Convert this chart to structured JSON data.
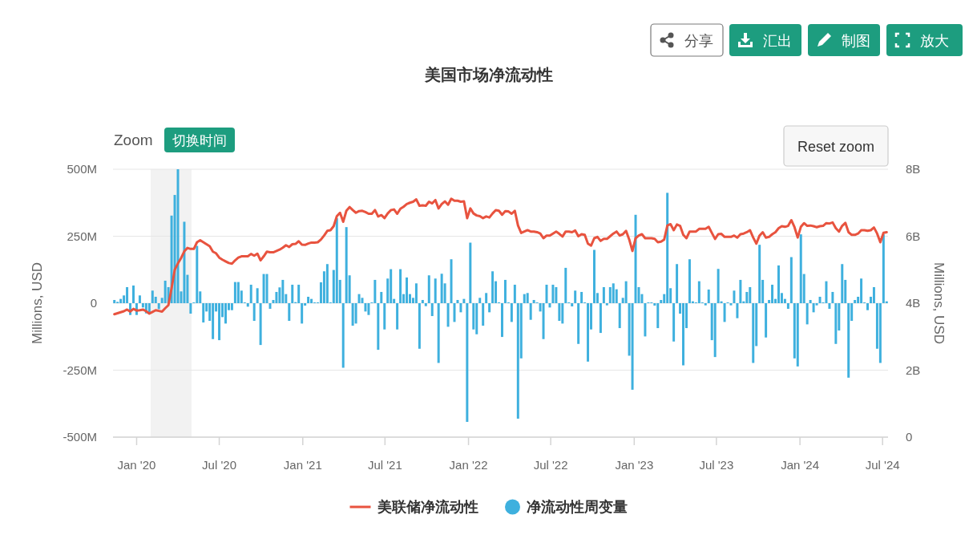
{
  "chart_data": {
    "type": "bar",
    "title": "美国市场净流动性",
    "ylabel": "Millions, USD",
    "y2label": "Millions, USD",
    "annotations": [
      "分享",
      "汇出",
      "制图",
      "放大",
      "Zoom",
      "切换时间",
      "Reset zoom"
    ],
    "x": [
      "2019-11-13",
      "2019-11-20",
      "2019-11-27",
      "2019-12-04",
      "2019-12-11",
      "2019-12-18",
      "2019-12-25",
      "2020-01-01",
      "2020-01-08",
      "2020-01-15",
      "2020-01-22",
      "2020-01-29",
      "2020-02-05",
      "2020-02-12",
      "2020-02-19",
      "2020-02-26",
      "2020-03-04",
      "2020-03-11",
      "2020-03-18",
      "2020-03-25",
      "2020-04-01",
      "2020-04-08",
      "2020-04-15",
      "2020-04-22",
      "2020-04-29",
      "2020-05-06",
      "2020-05-13",
      "2020-05-20",
      "2020-05-27",
      "2020-06-03",
      "2020-06-10",
      "2020-06-17",
      "2020-06-24",
      "2020-07-01",
      "2020-07-08",
      "2020-07-15",
      "2020-07-22",
      "2020-07-29",
      "2020-08-05",
      "2020-08-12",
      "2020-08-19",
      "2020-08-26",
      "2020-09-02",
      "2020-09-09",
      "2020-09-16",
      "2020-09-23",
      "2020-09-30",
      "2020-10-07",
      "2020-10-14",
      "2020-10-21",
      "2020-10-28",
      "2020-11-04",
      "2020-11-11",
      "2020-11-18",
      "2020-11-25",
      "2020-12-02",
      "2020-12-09",
      "2020-12-16",
      "2020-12-23",
      "2020-12-30",
      "2021-01-06",
      "2021-01-13",
      "2021-01-20",
      "2021-01-27",
      "2021-02-03",
      "2021-02-10",
      "2021-02-17",
      "2021-02-24",
      "2021-03-03",
      "2021-03-10",
      "2021-03-17",
      "2021-03-24",
      "2021-03-31",
      "2021-04-07",
      "2021-04-14",
      "2021-04-21",
      "2021-04-28",
      "2021-05-05",
      "2021-05-12",
      "2021-05-19",
      "2021-05-26",
      "2021-06-02",
      "2021-06-09",
      "2021-06-16",
      "2021-06-23",
      "2021-06-30",
      "2021-07-07",
      "2021-07-14",
      "2021-07-21",
      "2021-07-28",
      "2021-08-04",
      "2021-08-11",
      "2021-08-18",
      "2021-08-25",
      "2021-09-01",
      "2021-09-08",
      "2021-09-15",
      "2021-09-22",
      "2021-09-29",
      "2021-10-06",
      "2021-10-13",
      "2021-10-20",
      "2021-10-27",
      "2021-11-03",
      "2021-11-10",
      "2021-11-17",
      "2021-11-24",
      "2021-12-01",
      "2021-12-08",
      "2021-12-15",
      "2021-12-22",
      "2021-12-29",
      "2022-01-05",
      "2022-01-12",
      "2022-01-19",
      "2022-01-26",
      "2022-02-02",
      "2022-02-09",
      "2022-02-16",
      "2022-02-23",
      "2022-03-02",
      "2022-03-09",
      "2022-03-16",
      "2022-03-23",
      "2022-03-30",
      "2022-04-06",
      "2022-04-13",
      "2022-04-20",
      "2022-04-27",
      "2022-05-04",
      "2022-05-11",
      "2022-05-18",
      "2022-05-25",
      "2022-06-01",
      "2022-06-08",
      "2022-06-15",
      "2022-06-22",
      "2022-06-29",
      "2022-07-06",
      "2022-07-13",
      "2022-07-20",
      "2022-07-27",
      "2022-08-03",
      "2022-08-10",
      "2022-08-17",
      "2022-08-24",
      "2022-08-31",
      "2022-09-07",
      "2022-09-14",
      "2022-09-21",
      "2022-09-28",
      "2022-10-05",
      "2022-10-12",
      "2022-10-19",
      "2022-10-26",
      "2022-11-02",
      "2022-11-09",
      "2022-11-16",
      "2022-11-23",
      "2022-11-30",
      "2022-12-07",
      "2022-12-14",
      "2022-12-21",
      "2022-12-28",
      "2023-01-04",
      "2023-01-11",
      "2023-01-18",
      "2023-01-25",
      "2023-02-01",
      "2023-02-08",
      "2023-02-15",
      "2023-02-22",
      "2023-03-01",
      "2023-03-08",
      "2023-03-15",
      "2023-03-22",
      "2023-03-29",
      "2023-04-05",
      "2023-04-12",
      "2023-04-19",
      "2023-04-26",
      "2023-05-03",
      "2023-05-10",
      "2023-05-17",
      "2023-05-24",
      "2023-05-31",
      "2023-06-07",
      "2023-06-14",
      "2023-06-21",
      "2023-06-28",
      "2023-07-05",
      "2023-07-12",
      "2023-07-19",
      "2023-07-26",
      "2023-08-02",
      "2023-08-09",
      "2023-08-16",
      "2023-08-23",
      "2023-08-30",
      "2023-09-06",
      "2023-09-13",
      "2023-09-20",
      "2023-09-27",
      "2023-10-04",
      "2023-10-11",
      "2023-10-18",
      "2023-10-25",
      "2023-11-01",
      "2023-11-08",
      "2023-11-15",
      "2023-11-22",
      "2023-11-29",
      "2023-12-06",
      "2023-12-13",
      "2023-12-20",
      "2023-12-27",
      "2024-01-03",
      "2024-01-10",
      "2024-01-17",
      "2024-01-24",
      "2024-01-31",
      "2024-02-07",
      "2024-02-14",
      "2024-02-21",
      "2024-02-28",
      "2024-03-06",
      "2024-03-13",
      "2024-03-20",
      "2024-03-27",
      "2024-04-03",
      "2024-04-10",
      "2024-04-17",
      "2024-04-24",
      "2024-05-01",
      "2024-05-08",
      "2024-05-15",
      "2024-05-22",
      "2024-05-29",
      "2024-06-05",
      "2024-06-12",
      "2024-06-19",
      "2024-06-26",
      "2024-07-03",
      "2024-07-10"
    ],
    "series": [
      {
        "name": "美联储净流动性",
        "type": "line",
        "axis": "y2",
        "color": "#e8533f",
        "values": [
          3.67,
          3.7,
          3.73,
          3.76,
          3.81,
          3.75,
          3.83,
          3.78,
          3.79,
          3.81,
          3.76,
          3.69,
          3.74,
          3.79,
          3.77,
          3.75,
          3.85,
          3.94,
          4.45,
          5.0,
          5.19,
          5.35,
          5.55,
          5.65,
          5.62,
          5.62,
          5.82,
          5.88,
          5.82,
          5.76,
          5.7,
          5.54,
          5.49,
          5.36,
          5.3,
          5.25,
          5.2,
          5.18,
          5.28,
          5.36,
          5.4,
          5.4,
          5.4,
          5.47,
          5.42,
          5.48,
          5.28,
          5.4,
          5.54,
          5.52,
          5.52,
          5.56,
          5.6,
          5.66,
          5.73,
          5.68,
          5.76,
          5.77,
          5.85,
          5.75,
          5.74,
          5.78,
          5.81,
          5.81,
          5.82,
          5.9,
          6.02,
          6.16,
          6.18,
          6.3,
          6.6,
          6.7,
          6.43,
          6.76,
          6.87,
          6.78,
          6.7,
          6.75,
          6.76,
          6.72,
          6.67,
          6.67,
          6.78,
          6.59,
          6.63,
          6.54,
          6.68,
          6.78,
          6.8,
          6.67,
          6.82,
          6.88,
          6.96,
          7.0,
          7.03,
          7.1,
          6.91,
          6.92,
          6.91,
          7.03,
          6.98,
          7.08,
          6.83,
          6.96,
          7.04,
          6.94,
          7.12,
          7.06,
          7.06,
          7.03,
          7.04,
          6.54,
          6.83,
          6.68,
          6.62,
          6.6,
          6.54,
          6.59,
          6.56,
          6.68,
          6.78,
          6.76,
          6.64,
          6.75,
          6.74,
          6.67,
          6.76,
          6.32,
          6.1,
          6.14,
          6.18,
          6.14,
          6.14,
          6.12,
          6.08,
          5.94,
          6.02,
          6.02,
          6.08,
          6.14,
          6.07,
          5.99,
          6.14,
          6.14,
          6.12,
          6.17,
          6.0,
          6.06,
          6.04,
          5.78,
          5.72,
          5.94,
          5.98,
          5.86,
          5.92,
          5.92,
          6.0,
          6.08,
          6.14,
          6.02,
          6.06,
          6.16,
          5.9,
          5.56,
          5.94,
          6.02,
          6.06,
          5.94,
          5.94,
          5.94,
          5.92,
          5.82,
          5.84,
          5.9,
          6.32,
          6.36,
          6.18,
          6.35,
          6.31,
          6.04,
          5.94,
          6.14,
          6.14,
          6.14,
          6.22,
          6.22,
          6.22,
          6.28,
          6.1,
          5.92,
          6.06,
          6.07,
          5.98,
          5.98,
          5.98,
          6.02,
          5.96,
          6.06,
          6.08,
          6.12,
          6.18,
          5.96,
          5.78,
          6.02,
          6.12,
          5.96,
          5.98,
          6.06,
          6.12,
          6.24,
          6.3,
          6.28,
          6.31,
          6.48,
          6.27,
          5.96,
          6.28,
          6.39,
          6.31,
          6.32,
          6.3,
          6.27,
          6.3,
          6.31,
          6.39,
          6.38,
          6.41,
          6.24,
          6.14,
          6.31,
          6.4,
          6.12,
          6.04,
          6.04,
          6.08,
          6.18,
          6.18,
          6.16,
          6.18,
          6.26,
          6.08,
          5.82,
          6.1,
          6.12
        ]
      },
      {
        "name": "净流动性周变量",
        "color": "#3eb0de",
        "values": [
          12,
          5,
          16,
          29,
          60,
          -44,
          66,
          -44,
          29,
          -16,
          -38,
          -38,
          47,
          24,
          -22,
          20,
          84,
          60,
          327,
          404,
          500,
          44,
          304,
          106,
          -39,
          2,
          214,
          44,
          -72,
          -31,
          -66,
          -134,
          -31,
          -138,
          -52,
          -76,
          -26,
          -26,
          79,
          79,
          47,
          2,
          -13,
          69,
          -66,
          56,
          -156,
          109,
          109,
          -21,
          12,
          42,
          59,
          87,
          34,
          -66,
          69,
          4,
          69,
          -76,
          -9,
          24,
          16,
          2,
          1,
          78,
          119,
          146,
          1,
          124,
          317,
          87,
          -241,
          284,
          104,
          -84,
          -76,
          34,
          20,
          -31,
          -44,
          0,
          87,
          -174,
          42,
          -98,
          92,
          127,
          16,
          -98,
          127,
          34,
          96,
          34,
          20,
          74,
          -170,
          12,
          -11,
          104,
          -48,
          92,
          -223,
          110,
          74,
          -88,
          164,
          -70,
          12,
          -34,
          16,
          -443,
          226,
          -98,
          -116,
          20,
          -84,
          38,
          -34,
          119,
          82,
          2,
          -126,
          87,
          2,
          -70,
          69,
          -431,
          -206,
          34,
          38,
          -62,
          12,
          2,
          -31,
          -134,
          69,
          -16,
          69,
          60,
          -66,
          -76,
          132,
          0,
          -12,
          47,
          -152,
          42,
          1,
          -218,
          -98,
          199,
          38,
          -111,
          60,
          -8,
          60,
          74,
          52,
          -93,
          20,
          82,
          -196,
          -323,
          330,
          60,
          34,
          -124,
          0,
          2,
          -9,
          -93,
          12,
          34,
          412,
          56,
          -143,
          146,
          -39,
          -232,
          -93,
          164,
          7,
          0,
          82,
          2,
          -8,
          51,
          -138,
          -201,
          128,
          7,
          -70,
          0,
          -8,
          47,
          -56,
          87,
          7,
          42,
          60,
          -223,
          -160,
          218,
          87,
          -128,
          12,
          69,
          16,
          141,
          38,
          16,
          -21,
          172,
          -206,
          -236,
          257,
          109,
          -79,
          12,
          -34,
          -8,
          24,
          2,
          82,
          -21,
          42,
          -152,
          -102,
          146,
          87,
          -278,
          -66,
          12,
          24,
          92,
          2,
          -26,
          24,
          60,
          -170,
          -223,
          257,
          7
        ]
      }
    ],
    "xlim": [
      "2019-11-10",
      "2024-07-13"
    ],
    "xticks": [
      {
        "value": "2020-01-01",
        "label": "Jan '20"
      },
      {
        "value": "2020-07-01",
        "label": "Jul '20"
      },
      {
        "value": "2021-01-01",
        "label": "Jan '21"
      },
      {
        "value": "2021-07-01",
        "label": "Jul '21"
      },
      {
        "value": "2022-01-01",
        "label": "Jan '22"
      },
      {
        "value": "2022-07-01",
        "label": "Jul '22"
      },
      {
        "value": "2023-01-01",
        "label": "Jan '23"
      },
      {
        "value": "2023-07-01",
        "label": "Jul '23"
      },
      {
        "value": "2024-01-01",
        "label": "Jan '24"
      },
      {
        "value": "2024-07-01",
        "label": "Jul '24"
      }
    ],
    "ylim": [
      -500,
      500
    ],
    "yticks": [
      {
        "value": -500,
        "label": "-500M"
      },
      {
        "value": -250,
        "label": "-250M"
      },
      0,
      {
        "value": 250,
        "label": "250M"
      },
      {
        "value": 500,
        "label": "500M"
      }
    ],
    "y2lim": [
      0,
      8
    ],
    "y2ticks": [
      0,
      {
        "value": 2,
        "label": "2B"
      },
      {
        "value": 4,
        "label": "4B"
      },
      {
        "value": 6,
        "label": "6B"
      },
      {
        "value": 8,
        "label": "8B"
      }
    ],
    "bands": [
      {
        "axis": "x",
        "from": "2020-02-01",
        "to": "2020-05-01",
        "color": "#f2f2f2"
      }
    ],
    "grid": "y",
    "legend": "bottom"
  }
}
